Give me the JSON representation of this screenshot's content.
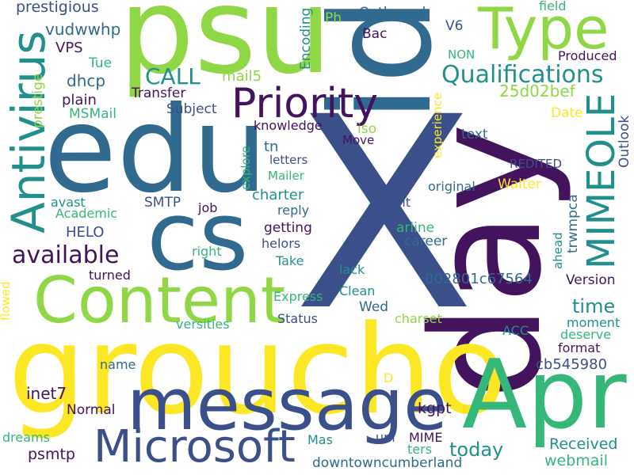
{
  "palette": {
    "dark_purple": "#44135e",
    "indigo": "#3b4f8a",
    "blue": "#306a8e",
    "teal": "#21908c",
    "green": "#35b779",
    "lime": "#8fd744",
    "yellow": "#fde725"
  },
  "words": {
    "x": "X",
    "day": "day",
    "groucho": "groucho",
    "edu": "edu",
    "psu": "psu",
    "id": "id",
    "cs": "cs",
    "apr": "Apr",
    "message": "message",
    "content": "Content",
    "microsoft": "Microsoft",
    "type": "Type",
    "priority": "Priority",
    "antivirus": "Antivirus",
    "mimeole": "MIMEOLE",
    "qualifications": "Qualifications",
    "available": "available",
    "call": "CALL",
    "prestigious": "prestigious",
    "vudwwhp": "vudwwhp",
    "vps": "VPS",
    "tue": "Tue",
    "dhcp": "dhcp",
    "plain": "plain",
    "msmail": "MSMail",
    "transfer": "Transfer",
    "subject": "Subject",
    "mail5": "mail5",
    "encoding": "Encoding",
    "outbound": "Outbound",
    "bac": "Bac",
    "ph": "Ph",
    "v6": "V6",
    "non": "NON",
    "field": "field",
    "produced": "Produced",
    "hash": "25d02bef",
    "date": "Date",
    "outlook": "Outlook",
    "knowledge": "knowledge",
    "iso": "iso",
    "text": "text",
    "tn": "tn",
    "move": "Move",
    "explore": "explore",
    "letters": "letters",
    "mailer": "Mailer",
    "charter": "charter",
    "reply": "reply",
    "getting": "getting",
    "helors": "helors",
    "take": "Take",
    "smtp": "SMTP",
    "job": "job",
    "right": "right",
    "avast": "avast",
    "academic": "Academic",
    "helo": "HELO",
    "original": "original",
    "walter": "Walter",
    "redited": "REDITED",
    "trwmpca": "trwmpca",
    "experience": "experience",
    "7bit": "7bit",
    "arline": "arline",
    "career": "career",
    "ahead": "ahead",
    "lack": "lack",
    "turned": "turned",
    "id_002": "002801c67564",
    "version": "Version",
    "express": "Express",
    "clean": "Clean",
    "time": "time",
    "wed": "Wed",
    "status": "Status",
    "charset": "charset",
    "versities": "versities",
    "moment": "moment",
    "deserve": "deserve",
    "flowed": "flowed",
    "acc": "ACC",
    "format": "format",
    "cb545980": "cb545980",
    "name": "name",
    "d": "D",
    "inet7": "inet7",
    "kgpt": "kgpt",
    "normal": "Normal",
    "uni": "uni",
    "mime": "MIME",
    "dreams": "dreams",
    "mas": "Mas",
    "ters": "ters",
    "today": "today",
    "received": "Received",
    "psmtp": "psmtp",
    "downtowncumberland": "downtowncumberland",
    "webmail": "webmail",
    "prestige": "prestige"
  }
}
